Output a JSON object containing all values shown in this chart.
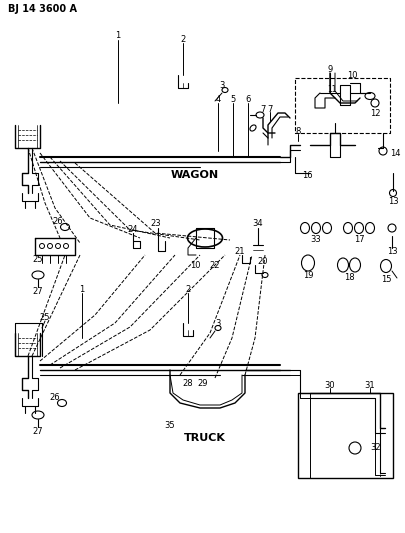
{
  "title": "BJ 14 3600 A",
  "bg_color": "#ffffff",
  "line_color": "#000000",
  "wagon_label": "WAGON",
  "truck_label": "TRUCK",
  "figsize": [
    4.05,
    5.33
  ],
  "dpi": 100
}
